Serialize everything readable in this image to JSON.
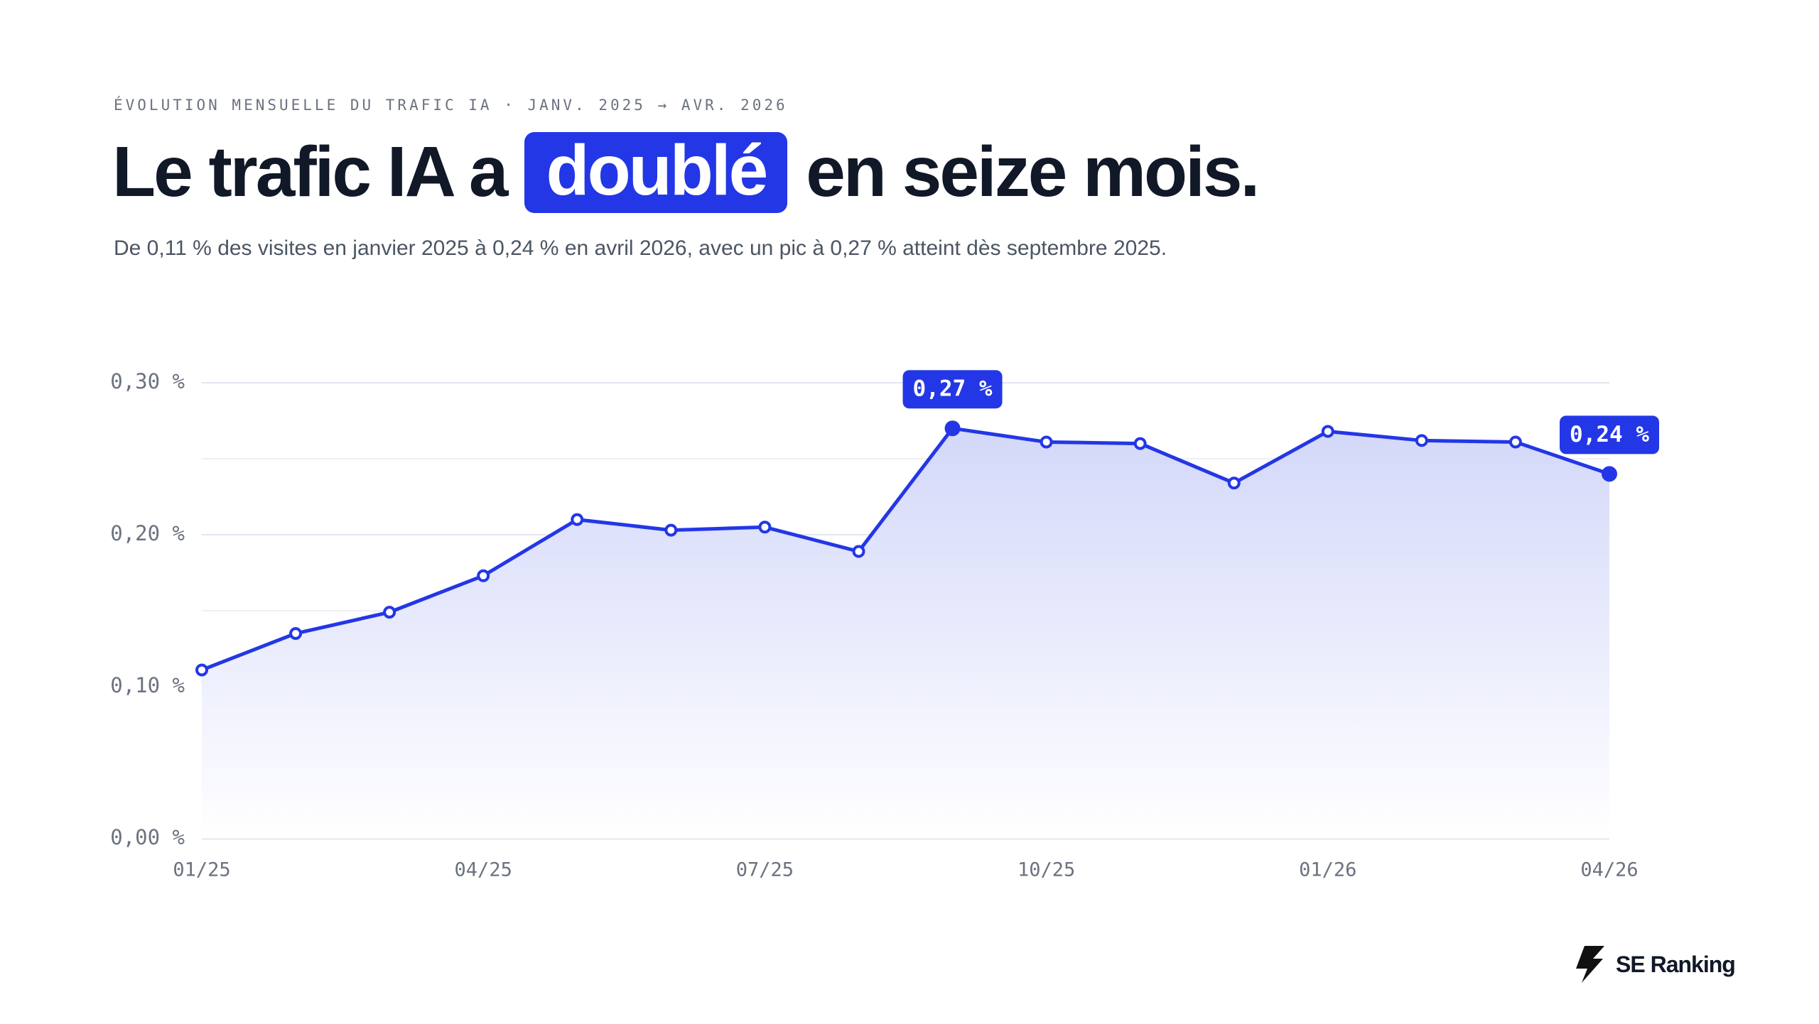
{
  "kicker": "ÉVOLUTION MENSUELLE DU TRAFIC IA · JANV. 2025 → AVR. 2026",
  "title": {
    "before": "Le trafic IA a",
    "highlight": "doublé",
    "after": "en seize mois."
  },
  "subtitle": "De 0,11 % des visites en janvier 2025 à 0,24 % en avril 2026, avec un pic à 0,27 % atteint dès septembre 2025.",
  "brand": "SE Ranking",
  "chart_data": {
    "type": "area-line",
    "color": "#2337e6",
    "categories": [
      "01/25",
      null,
      null,
      "04/25",
      null,
      null,
      "07/25",
      null,
      null,
      "10/25",
      null,
      null,
      "01/26",
      null,
      null,
      "04/26"
    ],
    "values": [
      0.111,
      0.135,
      0.149,
      0.173,
      0.21,
      0.203,
      0.205,
      0.189,
      0.27,
      0.261,
      0.26,
      0.234,
      0.268,
      0.262,
      0.261,
      0.24
    ],
    "value_labels": [
      null,
      null,
      null,
      null,
      null,
      null,
      null,
      null,
      "0,27 %",
      null,
      null,
      null,
      null,
      null,
      null,
      "0,24 %"
    ],
    "ylim": [
      0,
      0.3
    ],
    "yticks": [
      {
        "value": 0,
        "label": "0,00 %"
      },
      {
        "value": 0.1,
        "label": "0,10 %"
      },
      {
        "value": 0.2,
        "label": "0,20 %"
      },
      {
        "value": 0.3,
        "label": "0,30 %"
      }
    ],
    "minor_yticks": [
      0.05,
      0.15,
      0.25
    ],
    "grid": true
  }
}
